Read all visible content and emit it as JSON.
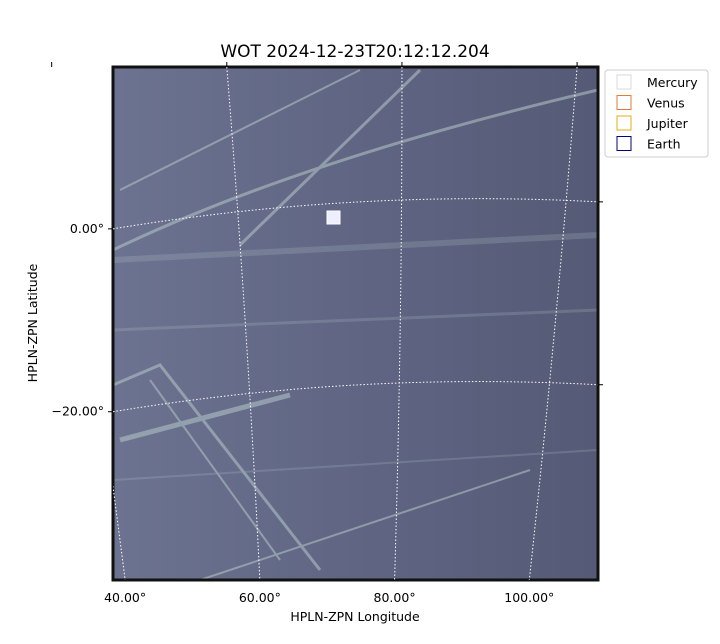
{
  "chart_data": {
    "type": "image",
    "title": "WOT 2024-12-23T20:12:12.204",
    "x_label": "HPLN-ZPN Longitude",
    "y_label": "HPLN-ZPN Latitude",
    "xlim": [
      38.2,
      110.2
    ],
    "ylim": [
      -38.4,
      17.7
    ],
    "xticks": [
      {
        "value": 40,
        "label": "40.00°"
      },
      {
        "value": 60,
        "label": "60.00°"
      },
      {
        "value": 80,
        "label": "80.00°"
      },
      {
        "value": 100,
        "label": "100.00°"
      }
    ],
    "yticks": [
      {
        "value": -20,
        "label": "−20.00°"
      },
      {
        "value": 0,
        "label": "0.00°"
      }
    ],
    "grid": true,
    "legend": "upper right",
    "series": [
      {
        "name": "Mercury",
        "color": "#d9d9d9"
      },
      {
        "name": "Venus",
        "color": "#e07b39"
      },
      {
        "name": "Jupiter",
        "color": "#e6a817"
      },
      {
        "name": "Earth",
        "color": "#000080"
      }
    ]
  }
}
